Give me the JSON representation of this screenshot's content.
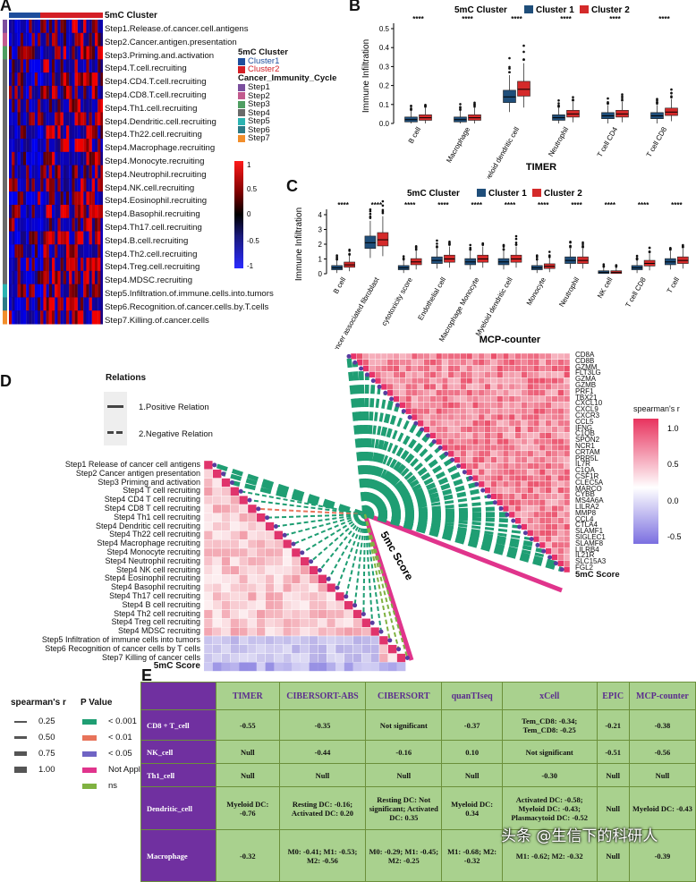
{
  "panels": {
    "a": "A",
    "b": "B",
    "c": "C",
    "d": "D",
    "e": "E"
  },
  "panel_a": {
    "cluster_header": "5mC Cluster",
    "rows": [
      "Step1.Release.of.cancer.cell.antigens",
      "Step2.Cancer.antigen.presentation",
      "Step3.Priming.and.activation",
      "Step4.T.cell.recruiting",
      "Step4.CD4.T.cell.recruiting",
      "Step4.CD8.T.cell.recruiting",
      "Step4.Th1.cell.recruiting",
      "Step4.Dendritic.cell.recruiting",
      "Step4.Th22.cell.recruiting",
      "Step4.Macrophage.recruiting",
      "Step4.Monocyte.recruiting",
      "Step4.Neutrophil.recruiting",
      "Step4.NK.cell.recruiting",
      "Step4.Eosinophil.recruiting",
      "Step4.Basophil.recruiting",
      "Step4.Th17.cell.recruiting",
      "Step4.B.cell.recruiting",
      "Step4.Th2.cell.recruiting",
      "Step4.Treg.cell.recruiting",
      "Step4.MDSC.recruiting",
      "Step5.Infiltration.of.immune.cells.into.tumors",
      "Step6.Recognition.of.cancer.cells.by.T.cells",
      "Step7.Killing.of.cancer.cells"
    ],
    "legend_cluster_title": "5mC Cluster",
    "legend_clusters": [
      {
        "label": "Cluster1",
        "color": "#1f4e9c"
      },
      {
        "label": "Cluster2",
        "color": "#d41f26"
      }
    ],
    "legend_cycle_title": "Cancer_Immunity_Cycle",
    "legend_cycle": [
      {
        "label": "Step1",
        "color": "#7b4f9e"
      },
      {
        "label": "Step2",
        "color": "#c25b8e"
      },
      {
        "label": "Step3",
        "color": "#4f9e62"
      },
      {
        "label": "Step4",
        "color": "#6a6a6a"
      },
      {
        "label": "Step5",
        "color": "#2bb3b1"
      },
      {
        "label": "Step6",
        "color": "#2c7a86"
      },
      {
        "label": "Step7",
        "color": "#f28e2b"
      }
    ],
    "colorbar_ticks": [
      "1",
      "0.5",
      "0",
      "-0.5",
      "-1"
    ]
  },
  "chart_data": [
    {
      "panel": "B",
      "type": "box",
      "title": "5mC Cluster",
      "legend": [
        "Cluster 1",
        "Cluster 2"
      ],
      "xlabel": "TIMER",
      "ylabel": "Immune Infiltration",
      "ylim": [
        0,
        0.5
      ],
      "yticks": [
        "0.0",
        "0.1",
        "0.2",
        "0.3",
        "0.4",
        "0.5"
      ],
      "categories": [
        "B cell",
        "Macrophage",
        "Myeloid dendritic cell",
        "Neutrophil",
        "T cell CD4",
        "T cell CD8"
      ],
      "significance": [
        "****",
        "****",
        "****",
        "****",
        "****",
        "****"
      ],
      "series": [
        {
          "name": "Cluster 1",
          "medians": [
            0.02,
            0.02,
            0.14,
            0.03,
            0.04,
            0.04
          ]
        },
        {
          "name": "Cluster 2",
          "medians": [
            0.03,
            0.03,
            0.18,
            0.05,
            0.05,
            0.06
          ]
        }
      ]
    },
    {
      "panel": "C",
      "type": "box",
      "title": "5mC Cluster",
      "legend": [
        "Cluster 1",
        "Cluster 2"
      ],
      "xlabel": "MCP-counter",
      "ylabel": "Immune Infiltration",
      "ylim": [
        0,
        4
      ],
      "yticks": [
        "0",
        "1",
        "2",
        "3",
        "4"
      ],
      "categories": [
        "B cell",
        "Cancer associated fibroblast",
        "cytotoxicity score",
        "Endothelial cell",
        "Macrophage Monocyte",
        "Myeloid dendritic cell",
        "Monocyte",
        "Neutrophil",
        "NK cell",
        "T cell CD8",
        "T cell"
      ],
      "significance": [
        "****",
        "****",
        "****",
        "****",
        "****",
        "****",
        "****",
        "****",
        "****",
        "****",
        "****"
      ],
      "series": [
        {
          "name": "Cluster 1",
          "medians": [
            0.4,
            2.1,
            0.4,
            0.9,
            0.8,
            0.8,
            0.4,
            0.9,
            0.1,
            0.4,
            0.8
          ]
        },
        {
          "name": "Cluster 2",
          "medians": [
            0.6,
            2.3,
            0.8,
            1.0,
            1.0,
            1.0,
            0.5,
            0.9,
            0.1,
            0.7,
            0.9
          ]
        }
      ]
    }
  ],
  "panel_d": {
    "relations_title": "Relations",
    "relation_pos": "1.Positive Relation",
    "relation_neg": "2.Negative Relation",
    "left_labels": [
      "Step1 Release of cancer cell antigens",
      "Step2 Cancer antigen presentation",
      "Step3 Priming and activation",
      "Step4 T cell recruiting",
      "Step4 CD4 T cell recruiting",
      "Step4 CD8 T cell recruiting",
      "Step4 Th1 cell recruiting",
      "Step4 Dendritic cell recruiting",
      "Step4 Th22 cell recruiting",
      "Step4 Macrophage recruiting",
      "Step4 Monocyte recruiting",
      "Step4 Neutrophil recruiting",
      "Step4 NK cell recruiting",
      "Step4 Eosinophil recruiting",
      "Step4 Basophil recruiting",
      "Step4 Th17 cell recruiting",
      "Step4 B cell recruiting",
      "Step4 Th2 cell recruiting",
      "Step4 Treg cell recruiting",
      "Step4 MDSC recruiting",
      "Step5 Infiltration of immune cells into tumors",
      "Step6 Recognition of cancer cells by T cells",
      "Step7 Killing of cancer cells",
      "5mC Score"
    ],
    "genes": [
      "CD8A",
      "CD8B",
      "GZMM",
      "FLT3LG",
      "GZMA",
      "GZMB",
      "PRF1",
      "TBX21",
      "CXCL10",
      "CXCL9",
      "CXCR3",
      "CCL5",
      "IFNG",
      "C1QB",
      "SPON2",
      "NCR1",
      "CRTAM",
      "PRR5L",
      "IL7R",
      "C1QA",
      "CSF1R",
      "CLEC5A",
      "MARCO",
      "CYBB",
      "MS4A6A",
      "LILRA2",
      "MMP8",
      "CCL4",
      "CTLA4",
      "SLAMF1",
      "SIGLEC1",
      "SLAMF8",
      "LILRB4",
      "IL21R",
      "SLC15A3",
      "FGL2",
      "5mC Score"
    ],
    "center_label": "5mc Score",
    "spearman_title": "spearman's r",
    "spearman_ticks": [
      "1.0",
      "0.5",
      "0.0",
      "-0.5"
    ],
    "size_title": "spearman's r",
    "size_items": [
      "0.25",
      "0.50",
      "0.75",
      "1.00"
    ],
    "pval_title": "P Value",
    "pval_items": [
      {
        "label": "< 0.001",
        "color": "#1f9e73"
      },
      {
        "label": "< 0.01",
        "color": "#e8735a"
      },
      {
        "label": "< 0.05",
        "color": "#6f64c4"
      },
      {
        "label": "Not Applicable",
        "color": "#e0348c"
      },
      {
        "label": "ns",
        "color": "#7fb241"
      }
    ]
  },
  "panel_e": {
    "columns": [
      "TIMER",
      "CIBERSORT-ABS",
      "CIBERSORT",
      "quanTIseq",
      "xCell",
      "EPIC",
      "MCP-counter"
    ],
    "rows": [
      {
        "name": "CD8 + T_cell",
        "cells": [
          "-0.55",
          "-0.35",
          "Not significant",
          "-0.37",
          "Tem_CD8: -0.34; Tem_CD8: -0.25",
          "-0.21",
          "-0.38"
        ]
      },
      {
        "name": "NK_cell",
        "cells": [
          "Null",
          "-0.44",
          "-0.16",
          "0.10",
          "Not significant",
          "-0.51",
          "-0.56"
        ]
      },
      {
        "name": "Th1_cell",
        "cells": [
          "Null",
          "Null",
          "Null",
          "Null",
          "-0.30",
          "Null",
          "Null"
        ]
      },
      {
        "name": "Dendritic_cell",
        "cells": [
          "Myeloid DC: -0.76",
          "Resting DC: -0.16; Activated DC: 0.20",
          "Resting DC: Not significant; Activated DC: 0.35",
          "Myeloid DC: 0.34",
          "Activated DC: -0.58; Myeloid DC: -0.43; Plasmacytoid DC: -0.52",
          "Null",
          "Myeloid DC: -0.43"
        ]
      },
      {
        "name": "Macrophage",
        "cells": [
          "-0.32",
          "M0: -0.41; M1: -0.53; M2: -0.56",
          "M0: -0.29; M1: -0.45; M2: -0.25",
          "M1: -0.68; M2: -0.32",
          "M1: -0.62; M2: -0.32",
          "Null",
          "-0.39"
        ]
      }
    ],
    "watermark": "头条 @生信下的科研人"
  }
}
